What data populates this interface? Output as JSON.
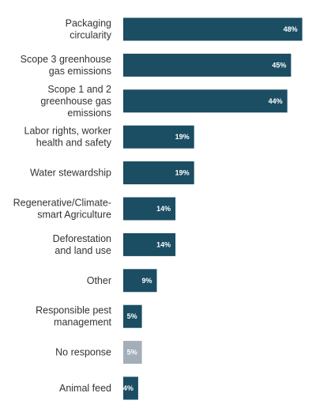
{
  "chart_data": {
    "type": "bar",
    "orientation": "horizontal",
    "categories": [
      [
        "Packaging",
        "circularity"
      ],
      [
        "Scope 3 greenhouse",
        "gas emissions"
      ],
      [
        "Scope 1 and 2",
        "greenhouse gas",
        "emissions"
      ],
      [
        "Labor rights, worker",
        "health and safety"
      ],
      [
        "Water stewardship"
      ],
      [
        "Regenerative/Climate-",
        "smart Agriculture"
      ],
      [
        "Deforestation",
        "and land use"
      ],
      [
        "Other"
      ],
      [
        "Responsible pest",
        "management"
      ],
      [
        "No response"
      ],
      [
        "Animal feed"
      ]
    ],
    "values": [
      48,
      45,
      44,
      19,
      19,
      14,
      14,
      9,
      5,
      5,
      4
    ],
    "value_labels": [
      "48%",
      "45%",
      "44%",
      "19%",
      "19%",
      "14%",
      "14%",
      "9%",
      "5%",
      "5%",
      "4%"
    ],
    "bar_colors": [
      "#1b4d63",
      "#1b4d63",
      "#1b4d63",
      "#1b4d63",
      "#1b4d63",
      "#1b4d63",
      "#1b4d63",
      "#1b4d63",
      "#1b4d63",
      "#a3aeb8",
      "#1b4d63"
    ],
    "xlim": [
      0,
      50
    ],
    "grid": false,
    "title": "",
    "xlabel": "",
    "ylabel": ""
  },
  "colors": {
    "primary": "#1b4d63",
    "no_response": "#a3aeb8",
    "label_text": "#333333",
    "bar_text": "#ffffff"
  }
}
